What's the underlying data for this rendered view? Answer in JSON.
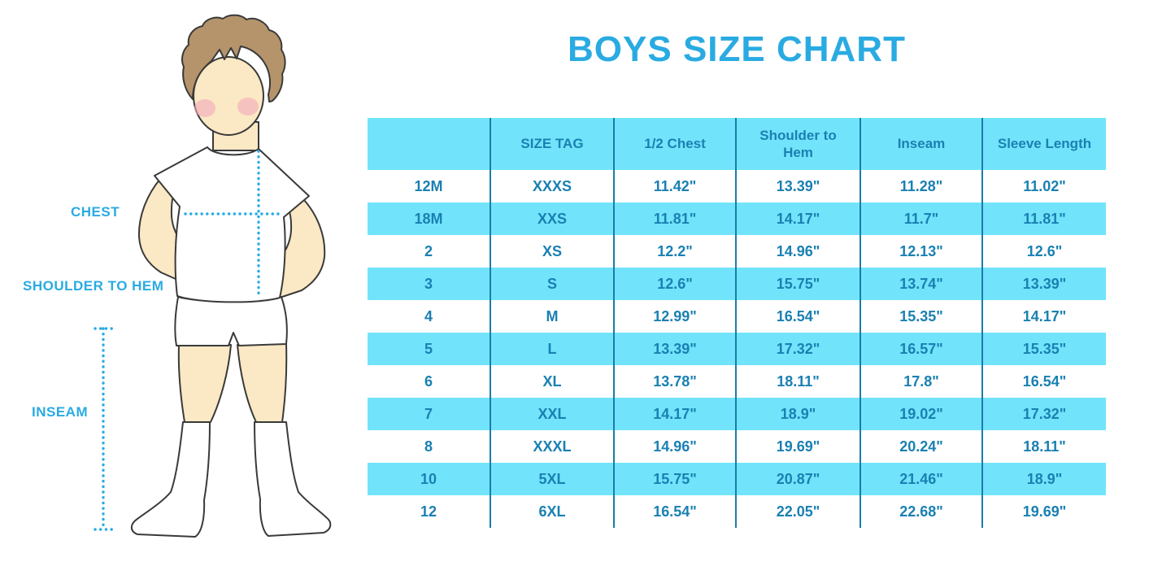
{
  "chart_data": {
    "type": "table",
    "title": "BOYS SIZE CHART",
    "columns": [
      "",
      "SIZE TAG",
      "1/2 Chest",
      "Shoulder to Hem",
      "Inseam",
      "Sleeve Length"
    ],
    "rows": [
      [
        "12M",
        "XXXS",
        "11.42\"",
        "13.39\"",
        "11.28\"",
        "11.02\""
      ],
      [
        "18M",
        "XXS",
        "11.81\"",
        "14.17\"",
        "11.7\"",
        "11.81\""
      ],
      [
        "2",
        "XS",
        "12.2\"",
        "14.96\"",
        "12.13\"",
        "12.6\""
      ],
      [
        "3",
        "S",
        "12.6\"",
        "15.75\"",
        "13.74\"",
        "13.39\""
      ],
      [
        "4",
        "M",
        "12.99\"",
        "16.54\"",
        "15.35\"",
        "14.17\""
      ],
      [
        "5",
        "L",
        "13.39\"",
        "17.32\"",
        "16.57\"",
        "15.35\""
      ],
      [
        "6",
        "XL",
        "13.78\"",
        "18.11\"",
        "17.8\"",
        "16.54\""
      ],
      [
        "7",
        "XXL",
        "14.17\"",
        "18.9\"",
        "19.02\"",
        "17.32\""
      ],
      [
        "8",
        "XXXL",
        "14.96\"",
        "19.69\"",
        "20.24\"",
        "18.11\""
      ],
      [
        "10",
        "5XL",
        "15.75\"",
        "20.87\"",
        "21.46\"",
        "18.9\""
      ],
      [
        "12",
        "6XL",
        "16.54\"",
        "22.05\"",
        "22.68\"",
        "19.69\""
      ]
    ],
    "layout": {
      "grid": "vertical-lines-only",
      "stripe": "alternating",
      "legend": "none"
    }
  },
  "figure": {
    "labels": {
      "chest": "CHEST",
      "shoulder_to_hem": "SHOULDER TO HEM",
      "inseam": "INSEAM"
    }
  },
  "colors": {
    "accent_blue": "#29abe2",
    "table_cyan": "#71e4fb",
    "table_text_blue": "#1a80b2",
    "grid_line_blue": "#1a7ca8",
    "skin": "#fbe8c4",
    "hair": "#b5946b",
    "blush": "#f2a9bd",
    "outline": "#3a3a3a"
  }
}
